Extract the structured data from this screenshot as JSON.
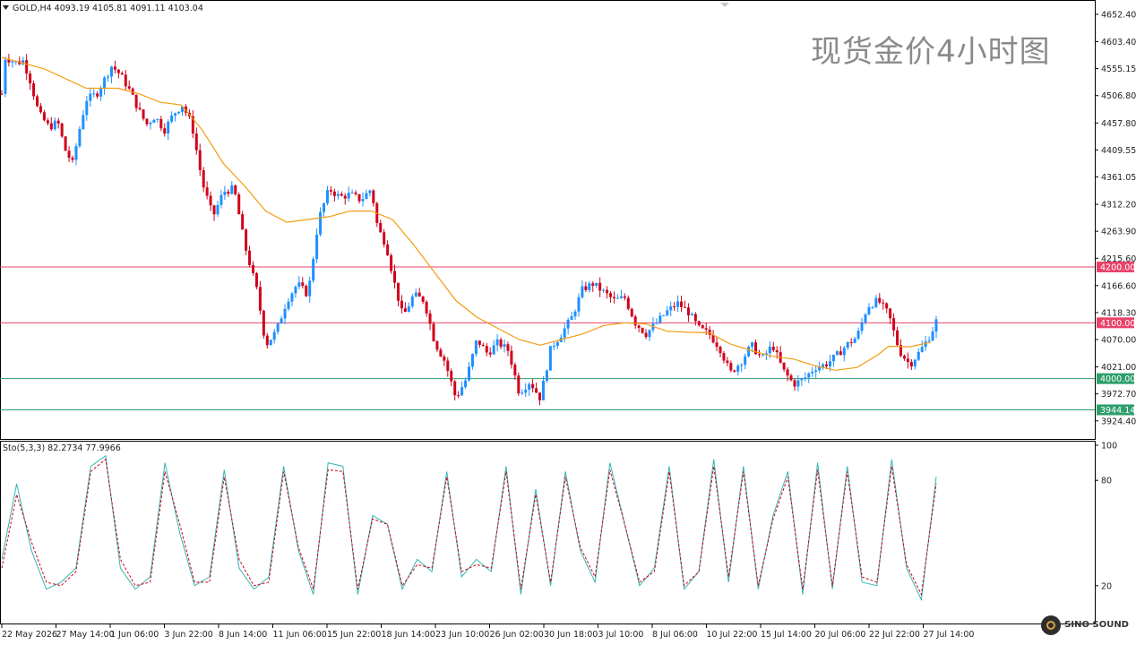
{
  "header": {
    "symbol_line": "GOLD,H4  4093.19 4105.81 4091.11 4103.04",
    "stoch_line": "Sto(5,3,3) 82.2734 77.9966",
    "watermark": "现货金价4小时图",
    "logo_text": "SINO SOUND"
  },
  "colors": {
    "bull_candle": "#1e90ff",
    "bear_candle": "#d0021b",
    "ma_line": "#f39c12",
    "resistance_line": "#e8436a",
    "support_line": "#2e9e6b",
    "stoch_main": "#33b5b5",
    "stoch_signal": "#d0021b",
    "axis_text": "#222222"
  },
  "chart_data": [
    {
      "type": "candlestick",
      "symbol": "GOLD",
      "timeframe": "H4",
      "ylim": [
        3900,
        4670
      ],
      "y_ticks": [
        "4652.40",
        "4603.40",
        "4555.15",
        "4506.80",
        "4457.80",
        "4409.55",
        "4361.05",
        "4312.20",
        "4263.90",
        "4215.60",
        "4166.60",
        "4118.30",
        "4070.00",
        "4021.00",
        "3972.70",
        "3924.40"
      ],
      "x_ticks": [
        "22 May 2026",
        "27 May 14:00",
        "1 Jun 06:00",
        "3 Jun 22:00",
        "8 Jun 14:00",
        "11 Jun 06:00",
        "15 Jun 22:00",
        "18 Jun 14:00",
        "23 Jun 10:00",
        "26 Jun 02:00",
        "30 Jun 18:00",
        "3 Jul 10:00",
        "8 Jul 06:00",
        "10 Jul 22:00",
        "15 Jul 14:00",
        "20 Jul 06:00",
        "22 Jul 22:00",
        "27 Jul 14:00"
      ],
      "price_levels": [
        {
          "label": "4200.00",
          "value": 4200,
          "style": "resistance"
        },
        {
          "label": "4100.00",
          "value": 4100,
          "style": "resistance"
        },
        {
          "label": "4000.00",
          "value": 4000,
          "style": "support"
        },
        {
          "label": "3944.14",
          "value": 3944.14,
          "style": "support"
        }
      ],
      "close_path": [
        [
          0,
          4510
        ],
        [
          0.3,
          4575
        ],
        [
          1.5,
          4565
        ],
        [
          2,
          4570
        ],
        [
          2.6,
          4540
        ],
        [
          3.5,
          4475
        ],
        [
          4.5,
          4450
        ],
        [
          5.3,
          4460
        ],
        [
          6,
          4410
        ],
        [
          6.7,
          4385
        ],
        [
          7.4,
          4450
        ],
        [
          8,
          4500
        ],
        [
          9,
          4510
        ],
        [
          9.7,
          4535
        ],
        [
          10.4,
          4560
        ],
        [
          11.2,
          4545
        ],
        [
          12,
          4520
        ],
        [
          13,
          4480
        ],
        [
          13.7,
          4455
        ],
        [
          14.5,
          4470
        ],
        [
          15.4,
          4445
        ],
        [
          16.3,
          4475
        ],
        [
          17.1,
          4490
        ],
        [
          18,
          4455
        ],
        [
          19,
          4350
        ],
        [
          20,
          4290
        ],
        [
          21,
          4335
        ],
        [
          22,
          4340
        ],
        [
          23,
          4240
        ],
        [
          24.2,
          4155
        ],
        [
          25,
          4060
        ],
        [
          26,
          4085
        ],
        [
          27,
          4140
        ],
        [
          28,
          4170
        ],
        [
          29,
          4150
        ],
        [
          30,
          4285
        ],
        [
          31,
          4340
        ],
        [
          32,
          4325
        ],
        [
          33,
          4330
        ],
        [
          34,
          4320
        ],
        [
          35,
          4340
        ],
        [
          35.6,
          4270
        ],
        [
          36.4,
          4240
        ],
        [
          37.2,
          4170
        ],
        [
          38,
          4110
        ],
        [
          39,
          4150
        ],
        [
          40,
          4140
        ],
        [
          41,
          4065
        ],
        [
          42,
          4030
        ],
        [
          43,
          3965
        ],
        [
          44,
          4000
        ],
        [
          45,
          4070
        ],
        [
          46,
          4045
        ],
        [
          47,
          4065
        ],
        [
          48,
          4050
        ],
        [
          49,
          3975
        ],
        [
          50,
          3995
        ],
        [
          51,
          3965
        ],
        [
          52,
          4055
        ],
        [
          53,
          4080
        ],
        [
          54,
          4110
        ],
        [
          55,
          4160
        ],
        [
          56,
          4170
        ],
        [
          57,
          4155
        ],
        [
          58,
          4140
        ],
        [
          59,
          4145
        ],
        [
          60,
          4100
        ],
        [
          61,
          4080
        ],
        [
          62,
          4100
        ],
        [
          63,
          4120
        ],
        [
          64,
          4135
        ],
        [
          65,
          4120
        ],
        [
          66,
          4090
        ],
        [
          67,
          4080
        ],
        [
          68,
          4055
        ],
        [
          69,
          4010
        ],
        [
          70,
          4030
        ],
        [
          71,
          4060
        ],
        [
          72,
          4035
        ],
        [
          73,
          4060
        ],
        [
          74,
          4015
        ],
        [
          75,
          3990
        ],
        [
          76,
          4000
        ],
        [
          77,
          4020
        ],
        [
          78,
          4025
        ],
        [
          79,
          4040
        ],
        [
          80,
          4060
        ],
        [
          81,
          4075
        ],
        [
          82,
          4130
        ],
        [
          83,
          4140
        ],
        [
          84,
          4115
        ],
        [
          85,
          4050
        ],
        [
          86,
          4025
        ],
        [
          87,
          4050
        ],
        [
          88,
          4080
        ],
        [
          88.5,
          4103
        ]
      ],
      "ma_path": [
        [
          0,
          4575
        ],
        [
          4,
          4555
        ],
        [
          8,
          4520
        ],
        [
          11,
          4520
        ],
        [
          13,
          4510
        ],
        [
          15,
          4495
        ],
        [
          17,
          4490
        ],
        [
          19,
          4445
        ],
        [
          21,
          4385
        ],
        [
          23,
          4345
        ],
        [
          25,
          4300
        ],
        [
          27,
          4280
        ],
        [
          29,
          4285
        ],
        [
          31,
          4290
        ],
        [
          33,
          4300
        ],
        [
          35,
          4300
        ],
        [
          37,
          4285
        ],
        [
          39,
          4240
        ],
        [
          41,
          4190
        ],
        [
          43,
          4140
        ],
        [
          45,
          4110
        ],
        [
          47,
          4090
        ],
        [
          49,
          4070
        ],
        [
          51,
          4060
        ],
        [
          53,
          4070
        ],
        [
          55,
          4080
        ],
        [
          57,
          4095
        ],
        [
          59,
          4100
        ],
        [
          61,
          4098
        ],
        [
          63,
          4085
        ],
        [
          65,
          4083
        ],
        [
          67,
          4082
        ],
        [
          69,
          4062
        ],
        [
          71,
          4050
        ],
        [
          73,
          4040
        ],
        [
          75,
          4035
        ],
        [
          77,
          4023
        ],
        [
          79,
          4015
        ],
        [
          81,
          4020
        ],
        [
          83,
          4043
        ],
        [
          84,
          4058
        ],
        [
          86,
          4057
        ],
        [
          88,
          4065
        ]
      ],
      "candle_count": 265
    },
    {
      "type": "line",
      "indicator": "Stochastic",
      "params": "5,3,3",
      "ylim": [
        0,
        100
      ],
      "y_ticks": [
        "100",
        "80",
        "20"
      ],
      "series": [
        {
          "name": "Sto main",
          "values": [
            35,
            78,
            40,
            18,
            22,
            30,
            88,
            94,
            30,
            18,
            25,
            90,
            50,
            20,
            25,
            86,
            30,
            18,
            25,
            88,
            40,
            15,
            90,
            88,
            15,
            60,
            55,
            18,
            35,
            28,
            85,
            25,
            35,
            28,
            88,
            15,
            75,
            20,
            85,
            40,
            22,
            90,
            55,
            20,
            30,
            88,
            18,
            28,
            92,
            22,
            88,
            18,
            60,
            85,
            15,
            90,
            18,
            88,
            22,
            20,
            92,
            30,
            12,
            82
          ]
        },
        {
          "name": "Sto signal",
          "values": [
            30,
            72,
            45,
            22,
            20,
            28,
            85,
            92,
            35,
            20,
            22,
            85,
            55,
            22,
            22,
            82,
            35,
            20,
            22,
            85,
            42,
            18,
            86,
            85,
            18,
            58,
            55,
            20,
            32,
            30,
            82,
            28,
            32,
            30,
            85,
            18,
            72,
            22,
            82,
            42,
            25,
            86,
            55,
            22,
            28,
            85,
            20,
            28,
            88,
            25,
            85,
            20,
            58,
            82,
            18,
            86,
            20,
            85,
            25,
            22,
            88,
            32,
            15,
            78
          ]
        }
      ]
    }
  ]
}
